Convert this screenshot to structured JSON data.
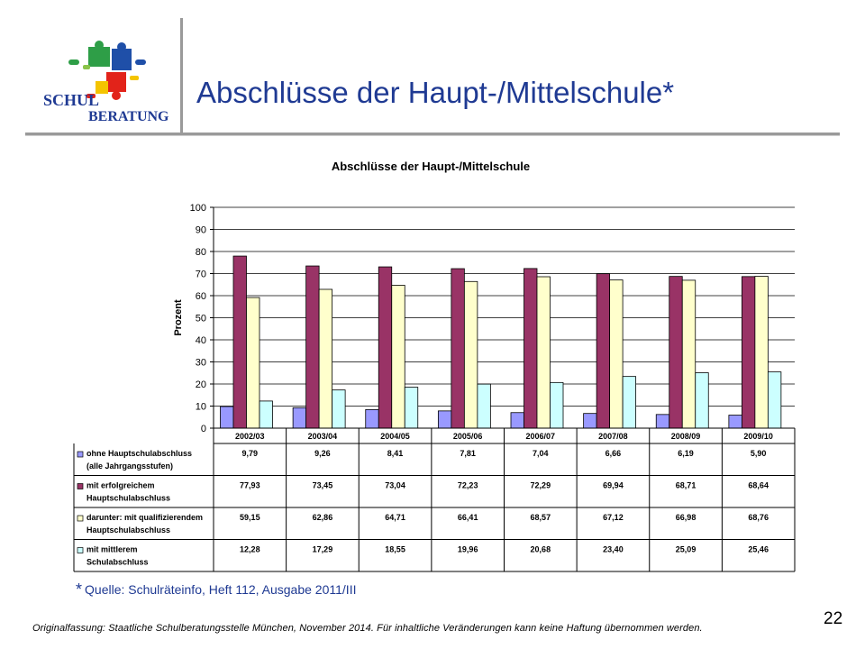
{
  "slide": {
    "title": "Abschlüsse der Haupt-/Mittelschule*",
    "source_asterisk": "*",
    "source": "Quelle: Schulräteinfo, Heft 112, Ausgabe 2011/III",
    "footer": "Originalfassung: Staatliche Schulberatungsstelle München, November 2014. Für inhaltliche Veränderungen kann keine Haftung übernommen werden.",
    "page_number": "22"
  },
  "logo": {
    "line1": "SCHUL",
    "line2": "BERATUNG",
    "text_color": "#1f3a93"
  },
  "chart_data": {
    "type": "bar",
    "title": "Abschlüsse der Haupt-/Mittelschule",
    "xlabel": "",
    "ylabel": "Prozent",
    "ylim": [
      0,
      100
    ],
    "yticks": [
      0,
      10,
      20,
      30,
      40,
      50,
      60,
      70,
      80,
      90,
      100
    ],
    "grid": true,
    "legend": "data-table",
    "categories": [
      "2002/03",
      "2003/04",
      "2004/05",
      "2005/06",
      "2006/07",
      "2007/08",
      "2008/09",
      "2009/10"
    ],
    "series": [
      {
        "name": "ohne Hauptschulabschluss (alle Jahrgangsstufen)",
        "label_lines": [
          "ohne Hauptschulabschluss",
          "(alle Jahrgangsstufen)"
        ],
        "color": "#9999ff",
        "values": [
          9.79,
          9.26,
          8.41,
          7.81,
          7.04,
          6.66,
          6.19,
          5.9
        ],
        "labels": [
          "9,79",
          "9,26",
          "8,41",
          "7,81",
          "7,04",
          "6,66",
          "6,19",
          "5,90"
        ]
      },
      {
        "name": "mit erfolgreichem Hauptschulabschluss",
        "label_lines": [
          "mit erfolgreichem",
          "Hauptschulabschluss"
        ],
        "color": "#993366",
        "values": [
          77.93,
          73.45,
          73.04,
          72.23,
          72.29,
          69.94,
          68.71,
          68.64
        ],
        "labels": [
          "77,93",
          "73,45",
          "73,04",
          "72,23",
          "72,29",
          "69,94",
          "68,71",
          "68,64"
        ]
      },
      {
        "name": "darunter: mit qualifizierendem Hauptschulabschluss",
        "label_lines": [
          "darunter: mit qualifizierendem",
          "Hauptschulabschluss"
        ],
        "color": "#ffffcc",
        "values": [
          59.15,
          62.86,
          64.71,
          66.41,
          68.57,
          67.12,
          66.98,
          68.76
        ],
        "labels": [
          "59,15",
          "62,86",
          "64,71",
          "66,41",
          "68,57",
          "67,12",
          "66,98",
          "68,76"
        ]
      },
      {
        "name": "mit mittlerem Schulabschluss",
        "label_lines": [
          "mit mittlerem",
          "Schulabschluss"
        ],
        "color": "#ccffff",
        "values": [
          12.28,
          17.29,
          18.55,
          19.96,
          20.68,
          23.4,
          25.09,
          25.46
        ],
        "labels": [
          "12,28",
          "17,29",
          "18,55",
          "19,96",
          "20,68",
          "23,40",
          "25,09",
          "25,46"
        ]
      }
    ]
  }
}
